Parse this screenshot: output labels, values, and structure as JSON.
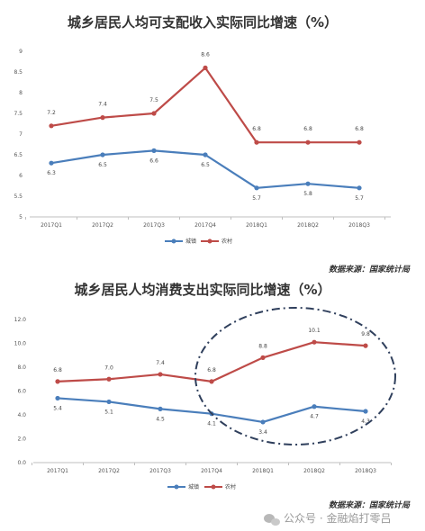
{
  "chart_data": [
    {
      "type": "line",
      "title": "城乡居民人均可支配收入实际同比增速（%）",
      "categories": [
        "2017Q1",
        "2017Q2",
        "2017Q3",
        "2017Q4",
        "2018Q1",
        "2018Q2",
        "2018Q3"
      ],
      "series": [
        {
          "name": "城镇",
          "color": "#4a7ebb",
          "values": [
            6.3,
            6.5,
            6.6,
            6.5,
            5.7,
            5.8,
            5.7
          ],
          "labels": [
            "6.3",
            "6.5",
            "6.6",
            "6.5",
            "5.7",
            "5.8",
            "5.7"
          ]
        },
        {
          "name": "农村",
          "color": "#be4b48",
          "values": [
            7.2,
            7.4,
            7.5,
            8.6,
            6.8,
            6.8,
            6.8
          ],
          "labels": [
            "7.2",
            "7.4",
            "7.5",
            "8.6",
            "6.8",
            "6.8",
            "6.8"
          ]
        }
      ],
      "ylim": [
        5,
        9
      ],
      "yticks": [
        "5",
        "5.5",
        "6",
        "6.5",
        "7",
        "7.5",
        "8",
        "8.5",
        "9"
      ],
      "grid": false,
      "legend": "bottom",
      "source": "数据来源：国家统计局"
    },
    {
      "type": "line",
      "title": "城乡居民人均消费支出实际同比增速（%）",
      "categories": [
        "2017Q1",
        "2017Q2",
        "2017Q3",
        "2017Q4",
        "2018Q1",
        "2018Q2",
        "2018Q3"
      ],
      "series": [
        {
          "name": "城镇",
          "color": "#4a7ebb",
          "values": [
            5.4,
            5.1,
            4.5,
            4.1,
            3.4,
            4.7,
            4.3
          ],
          "labels": [
            "5.4",
            "5.1",
            "4.5",
            "4.1",
            "3.4",
            "4.7",
            "4.3"
          ]
        },
        {
          "name": "农村",
          "color": "#be4b48",
          "values": [
            6.8,
            7.0,
            7.4,
            6.8,
            8.8,
            10.1,
            9.8
          ],
          "labels": [
            "6.8",
            "7.0",
            "7.4",
            "6.8",
            "8.8",
            "10.1",
            "9.8"
          ]
        }
      ],
      "ylim": [
        0,
        12
      ],
      "yticks": [
        "0.0",
        "2.0",
        "4.0",
        "6.0",
        "8.0",
        "10.0",
        "12.0"
      ],
      "grid": false,
      "legend": "bottom",
      "annotation": "dash-dot ellipse highlighting 2017Q4–2018Q3",
      "source": "数据来源：国家统计局"
    }
  ],
  "watermark": {
    "text": "公众号 · 金融焰打零吕",
    "icon": "wechat-icon"
  }
}
